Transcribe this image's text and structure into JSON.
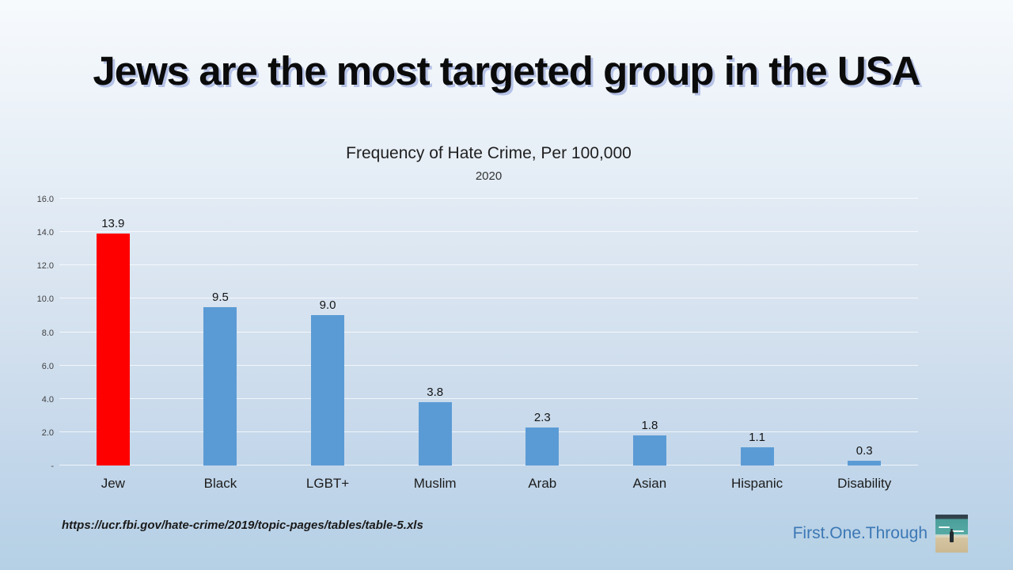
{
  "slide": {
    "title": "Jews are the most targeted group in the USA",
    "source_url": "https://ucr.fbi.gov/hate-crime/2019/topic-pages/tables/table-5.xls",
    "brand": "First.One.Through",
    "brand_color": "#3c78b5",
    "highlight_color": "#ff0000",
    "default_bar_color": "#5b9bd5"
  },
  "chart_data": {
    "type": "bar",
    "title": "Frequency of Hate Crime, Per 100,000",
    "subtitle": "2020",
    "categories": [
      "Jew",
      "Black",
      "LGBT+",
      "Muslim",
      "Arab",
      "Asian",
      "Hispanic",
      "Disability"
    ],
    "values": [
      13.9,
      9.5,
      9.0,
      3.8,
      2.3,
      1.8,
      1.1,
      0.3
    ],
    "bar_colors": [
      "#ff0000",
      "#5b9bd5",
      "#5b9bd5",
      "#5b9bd5",
      "#5b9bd5",
      "#5b9bd5",
      "#5b9bd5",
      "#5b9bd5"
    ],
    "xlabel": "",
    "ylabel": "",
    "ylim": [
      0,
      16
    ],
    "ytick_values": [
      16,
      14,
      12,
      10,
      8,
      6,
      4,
      2,
      0
    ],
    "ytick_labels": [
      "16.0",
      "14.0",
      "12.0",
      "10.0",
      "8.0",
      "6.0",
      "4.0",
      "2.0",
      "-"
    ],
    "grid": true,
    "legend": "none"
  }
}
